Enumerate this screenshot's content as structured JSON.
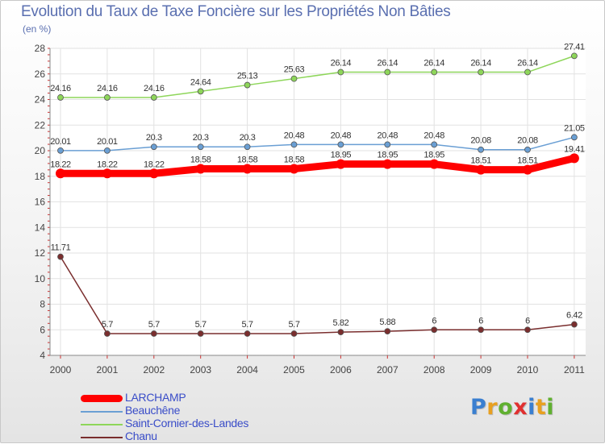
{
  "header": {
    "title": "Evolution du Taux de Taxe Foncière sur les Propriétés Non Bâties",
    "unit": "(en %)"
  },
  "chart_data": {
    "type": "line",
    "x": [
      "2000",
      "2001",
      "2002",
      "2003",
      "2004",
      "2005",
      "2006",
      "2007",
      "2008",
      "2009",
      "2010",
      "2011"
    ],
    "ylim": [
      4,
      28
    ],
    "yticks": [
      4,
      6,
      8,
      10,
      12,
      14,
      16,
      18,
      20,
      22,
      24,
      26,
      28
    ],
    "grid": true,
    "legend_placement": "bottom-left",
    "series": [
      {
        "name": "LARCHAMP",
        "color": "#ff0000",
        "values": [
          18.22,
          18.22,
          18.22,
          18.58,
          18.58,
          18.58,
          18.95,
          18.95,
          18.95,
          18.51,
          18.51,
          19.41
        ],
        "labels": [
          "18.22",
          "18.22",
          "18.22",
          "18.58",
          "18.58",
          "18.58",
          "18.95",
          "18.95",
          "18.95",
          "18.51",
          "18.51",
          "19.41"
        ]
      },
      {
        "name": "Beauchêne",
        "color": "#6a9fd4",
        "values": [
          20.01,
          20.01,
          20.3,
          20.3,
          20.3,
          20.48,
          20.48,
          20.48,
          20.48,
          20.08,
          20.08,
          21.05
        ],
        "labels": [
          "20.01",
          "20.01",
          "20.3",
          "20.3",
          "20.3",
          "20.48",
          "20.48",
          "20.48",
          "20.48",
          "20.08",
          "20.08",
          "21.05"
        ]
      },
      {
        "name": "Saint-Cornier-des-Landes",
        "color": "#8ed65a",
        "values": [
          24.16,
          24.16,
          24.16,
          24.64,
          25.13,
          25.63,
          26.14,
          26.14,
          26.14,
          26.14,
          26.14,
          27.41
        ],
        "labels": [
          "24.16",
          "24.16",
          "24.16",
          "24.64",
          "25.13",
          "25.63",
          "26.14",
          "26.14",
          "26.14",
          "26.14",
          "26.14",
          "27.41"
        ]
      },
      {
        "name": "Chanu",
        "color": "#7a2e2e",
        "values": [
          11.71,
          5.7,
          5.7,
          5.7,
          5.7,
          5.7,
          5.82,
          5.88,
          6,
          6,
          6,
          6.42
        ],
        "labels": [
          "11.71",
          "5.7",
          "5.7",
          "5.7",
          "5.7",
          "5.7",
          "5.82",
          "5.88",
          "6",
          "6",
          "6",
          "6.42"
        ]
      }
    ]
  },
  "legend": {
    "items": [
      "LARCHAMP",
      "Beauchêne",
      "Saint-Cornier-des-Landes",
      "Chanu"
    ]
  },
  "logo": {
    "letters": [
      "P",
      "r",
      "o",
      "x",
      "i",
      "t",
      "i"
    ],
    "colors": [
      "#3a7fd0",
      "#e8a020",
      "#60b030",
      "#e03030",
      "#3a7fd0",
      "#e8a020",
      "#60b030"
    ]
  }
}
